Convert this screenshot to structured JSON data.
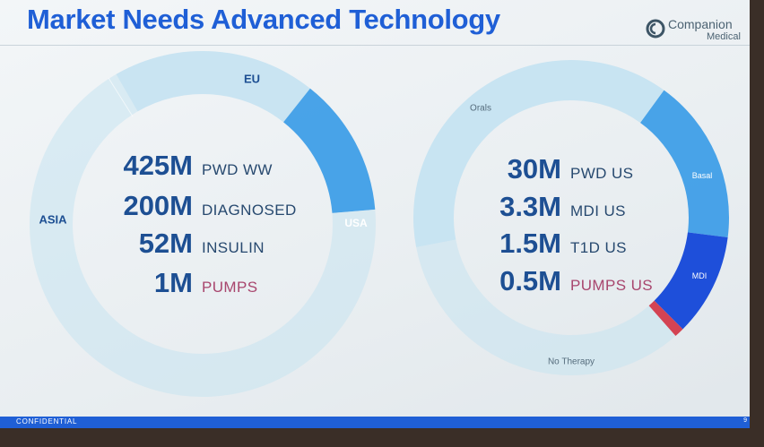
{
  "slide": {
    "title": "Market Needs Advanced Technology",
    "logo": {
      "name": "Companion",
      "sub": "Medical"
    },
    "footer": "CONFIDENTIAL",
    "page_number": "9"
  },
  "colors": {
    "ring_light": "#c6e3f1",
    "ring_mid": "#3f9ee7",
    "ring_dark": "#1347d8",
    "accent_red": "#d23a4a",
    "title": "#1f5fd6"
  },
  "left_donut": {
    "segments": [
      {
        "label": "EU",
        "value": 19
      },
      {
        "label": "USA",
        "value": 13
      },
      {
        "label": "ASIA",
        "value": 68
      }
    ],
    "stats": [
      {
        "value": "425M",
        "label": "PWD WW"
      },
      {
        "value": "200M",
        "label": "DIAGNOSED"
      },
      {
        "value": "52M",
        "label": "INSULIN"
      },
      {
        "value": "1M",
        "label": "PUMPS"
      }
    ]
  },
  "right_donut": {
    "segments": [
      {
        "label": "Basal",
        "value": 17
      },
      {
        "label": "MDI",
        "value": 10.5
      },
      {
        "label": "",
        "value": 1
      },
      {
        "label": "No Therapy",
        "value": 33.5
      },
      {
        "label": "Orals",
        "value": 38
      }
    ],
    "stats": [
      {
        "value": "30M",
        "label": "PWD US"
      },
      {
        "value": "3.3M",
        "label": "MDI US"
      },
      {
        "value": "1.5M",
        "label": "T1D US"
      },
      {
        "value": "0.5M",
        "label": "PUMPS US"
      }
    ]
  }
}
